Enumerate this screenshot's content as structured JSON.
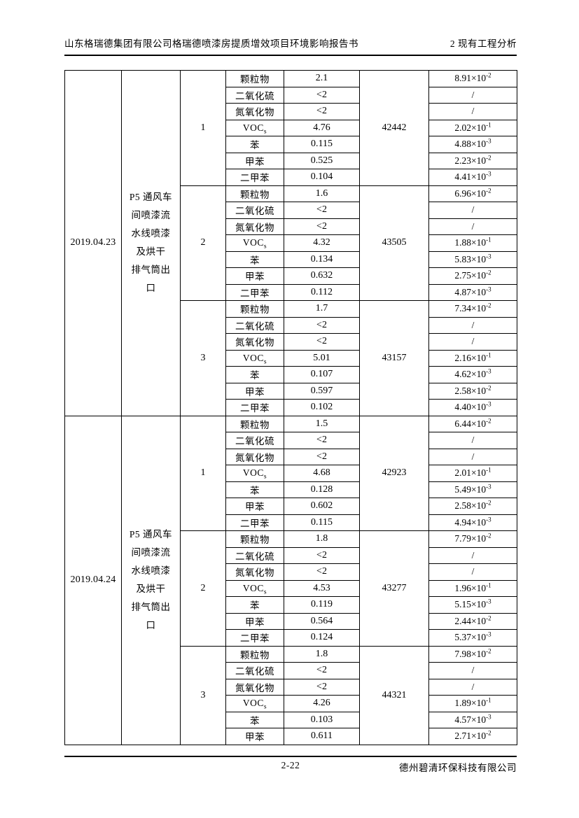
{
  "header": {
    "left": "山东格瑞德集团有限公司格瑞德喷漆房提质增效项目环境影响报告书",
    "right": "2 现有工程分析"
  },
  "footer": {
    "page_number": "2-22",
    "company": "德州碧清环保科技有限公司"
  },
  "table": {
    "blocks": [
      {
        "date": "2019.04.23",
        "location_lines": [
          "P5 通风车",
          "间喷漆流",
          "水线喷漆",
          "及烘干",
          "排气筒出",
          "口"
        ],
        "valign": "top",
        "groups": [
          {
            "no": "1",
            "flow": "42442",
            "rows": [
              {
                "pollutant": "颗粒物",
                "value": "2.1",
                "rate": "8.91×10^-2"
              },
              {
                "pollutant": "二氧化硫",
                "value": "<2",
                "rate": "/"
              },
              {
                "pollutant": "氮氧化物",
                "value": "<2",
                "rate": "/"
              },
              {
                "pollutant": "VOCs",
                "value": "4.76",
                "rate": "2.02×10^-1"
              },
              {
                "pollutant": "苯",
                "value": "0.115",
                "rate": "4.88×10^-3"
              },
              {
                "pollutant": "甲苯",
                "value": "0.525",
                "rate": "2.23×10^-2"
              },
              {
                "pollutant": "二甲苯",
                "value": "0.104",
                "rate": "4.41×10^-3"
              }
            ]
          },
          {
            "no": "2",
            "flow": "43505",
            "rows": [
              {
                "pollutant": "颗粒物",
                "value": "1.6",
                "rate": "6.96×10^-2"
              },
              {
                "pollutant": "二氧化硫",
                "value": "<2",
                "rate": "/"
              },
              {
                "pollutant": "氮氧化物",
                "value": "<2",
                "rate": "/"
              },
              {
                "pollutant": "VOCs",
                "value": "4.32",
                "rate": "1.88×10^-1"
              },
              {
                "pollutant": "苯",
                "value": "0.134",
                "rate": "5.83×10^-3"
              },
              {
                "pollutant": "甲苯",
                "value": "0.632",
                "rate": "2.75×10^-2"
              },
              {
                "pollutant": "二甲苯",
                "value": "0.112",
                "rate": "4.87×10^-3"
              }
            ]
          },
          {
            "no": "3",
            "flow": "43157",
            "rows": [
              {
                "pollutant": "颗粒物",
                "value": "1.7",
                "rate": "7.34×10^-2"
              },
              {
                "pollutant": "二氧化硫",
                "value": "<2",
                "rate": "/"
              },
              {
                "pollutant": "氮氧化物",
                "value": "<2",
                "rate": "/"
              },
              {
                "pollutant": "VOCs",
                "value": "5.01",
                "rate": "2.16×10^-1"
              },
              {
                "pollutant": "苯",
                "value": "0.107",
                "rate": "4.62×10^-3"
              },
              {
                "pollutant": "甲苯",
                "value": "0.597",
                "rate": "2.58×10^-2"
              },
              {
                "pollutant": "二甲苯",
                "value": "0.102",
                "rate": "4.40×10^-3"
              }
            ]
          }
        ]
      },
      {
        "date": "2019.04.24",
        "location_lines": [
          "P5 通风车",
          "间喷漆流",
          "水线喷漆",
          "及烘干",
          "排气筒出",
          "口"
        ],
        "valign": "middle",
        "groups": [
          {
            "no": "1",
            "flow": "42923",
            "rows": [
              {
                "pollutant": "颗粒物",
                "value": "1.5",
                "rate": "6.44×10^-2"
              },
              {
                "pollutant": "二氧化硫",
                "value": "<2",
                "rate": "/"
              },
              {
                "pollutant": "氮氧化物",
                "value": "<2",
                "rate": "/"
              },
              {
                "pollutant": "VOCs",
                "value": "4.68",
                "rate": "2.01×10^-1"
              },
              {
                "pollutant": "苯",
                "value": "0.128",
                "rate": "5.49×10^-3"
              },
              {
                "pollutant": "甲苯",
                "value": "0.602",
                "rate": "2.58×10^-2"
              },
              {
                "pollutant": "二甲苯",
                "value": "0.115",
                "rate": "4.94×10^-3"
              }
            ]
          },
          {
            "no": "2",
            "flow": "43277",
            "rows": [
              {
                "pollutant": "颗粒物",
                "value": "1.8",
                "rate": "7.79×10^-2"
              },
              {
                "pollutant": "二氧化硫",
                "value": "<2",
                "rate": "/"
              },
              {
                "pollutant": "氮氧化物",
                "value": "<2",
                "rate": "/"
              },
              {
                "pollutant": "VOCs",
                "value": "4.53",
                "rate": "1.96×10^-1"
              },
              {
                "pollutant": "苯",
                "value": "0.119",
                "rate": "5.15×10^-3"
              },
              {
                "pollutant": "甲苯",
                "value": "0.564",
                "rate": "2.44×10^-2"
              },
              {
                "pollutant": "二甲苯",
                "value": "0.124",
                "rate": "5.37×10^-3"
              }
            ]
          },
          {
            "no": "3",
            "flow": "44321",
            "rows": [
              {
                "pollutant": "颗粒物",
                "value": "1.8",
                "rate": "7.98×10^-2"
              },
              {
                "pollutant": "二氧化硫",
                "value": "<2",
                "rate": "/"
              },
              {
                "pollutant": "氮氧化物",
                "value": "<2",
                "rate": "/"
              },
              {
                "pollutant": "VOCs",
                "value": "4.26",
                "rate": "1.89×10^-1"
              },
              {
                "pollutant": "苯",
                "value": "0.103",
                "rate": "4.57×10^-3"
              },
              {
                "pollutant": "甲苯",
                "value": "0.611",
                "rate": "2.71×10^-2"
              }
            ]
          }
        ]
      }
    ]
  }
}
